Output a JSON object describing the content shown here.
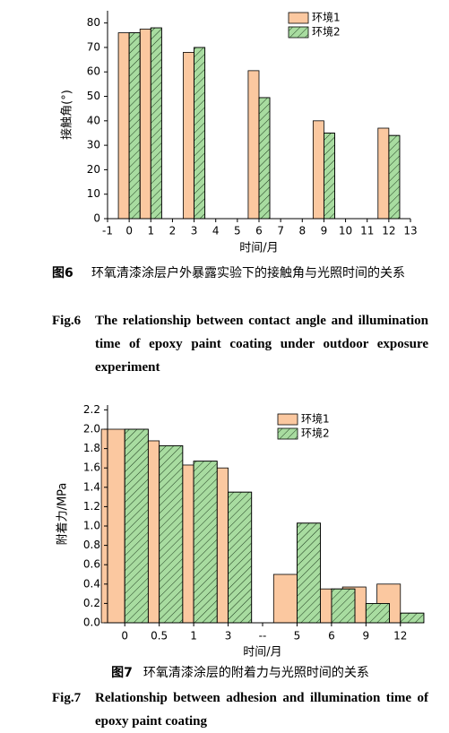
{
  "chart_data": [
    {
      "type": "bar",
      "x": [
        0,
        1,
        3,
        6,
        9,
        12
      ],
      "xlim": [
        -1,
        13
      ],
      "xticks": [
        -1,
        0,
        1,
        2,
        3,
        4,
        5,
        6,
        7,
        8,
        9,
        10,
        11,
        12,
        13
      ],
      "ylim": [
        0,
        85
      ],
      "yticks": [
        0,
        10,
        20,
        30,
        40,
        50,
        60,
        70,
        80
      ],
      "xlabel": "时间/月",
      "ylabel": "接触角(°)",
      "series": [
        {
          "name": "环境1",
          "color": "#fbc8a0",
          "hatch": false,
          "values": [
            76,
            77.5,
            68,
            60.5,
            40,
            37
          ]
        },
        {
          "name": "环境2",
          "color": "#a8dca0",
          "hatch": true,
          "values": [
            76,
            78,
            70,
            49.5,
            35,
            34
          ]
        }
      ],
      "caption_label": "图6",
      "caption": "环氧清漆涂层户外暴露实验下的接触角与光照时间的关系",
      "caption_en_label": "Fig.6",
      "caption_en": "The relationship between contact angle and illumination time of epoxy paint coating under outdoor exposure experiment"
    },
    {
      "type": "bar",
      "categories": [
        "0",
        "0.5",
        "1",
        "3",
        "--",
        "5",
        "6",
        "9",
        "12"
      ],
      "ylim": [
        0,
        2.25
      ],
      "yticks": [
        {
          "value": 0,
          "label": "0.0"
        },
        {
          "value": 0.2,
          "label": "0.2"
        },
        {
          "value": 0.4,
          "label": "0.4"
        },
        {
          "value": 0.6,
          "label": "0.6"
        },
        {
          "value": 0.8,
          "label": "0.8"
        },
        {
          "value": 1,
          "label": "1.0"
        },
        {
          "value": 1.2,
          "label": "1.2"
        },
        {
          "value": 1.4,
          "label": "1.4"
        },
        {
          "value": 1.6,
          "label": "1.6"
        },
        {
          "value": 1.8,
          "label": "1.8"
        },
        {
          "value": 2,
          "label": "2.0"
        },
        {
          "value": 2.2,
          "label": "2.2"
        }
      ],
      "xlabel": "时间/月",
      "ylabel": "附着力/MPa",
      "series": [
        {
          "name": "环境1",
          "color": "#fbc8a0",
          "hatch": false,
          "values": [
            2.0,
            1.88,
            1.63,
            1.6,
            null,
            0.5,
            0.35,
            0.37,
            0.4
          ]
        },
        {
          "name": "环境2",
          "color": "#a8dca0",
          "hatch": true,
          "values": [
            2.0,
            1.83,
            1.67,
            1.35,
            null,
            1.03,
            0.35,
            0.2,
            0.1
          ]
        }
      ],
      "caption_label": "图7",
      "caption": "环氧清漆涂层的附着力与光照时间的关系",
      "caption_en_label": "Fig.7",
      "caption_en": "Relationship between adhesion and illumination time of epoxy paint coating"
    }
  ]
}
